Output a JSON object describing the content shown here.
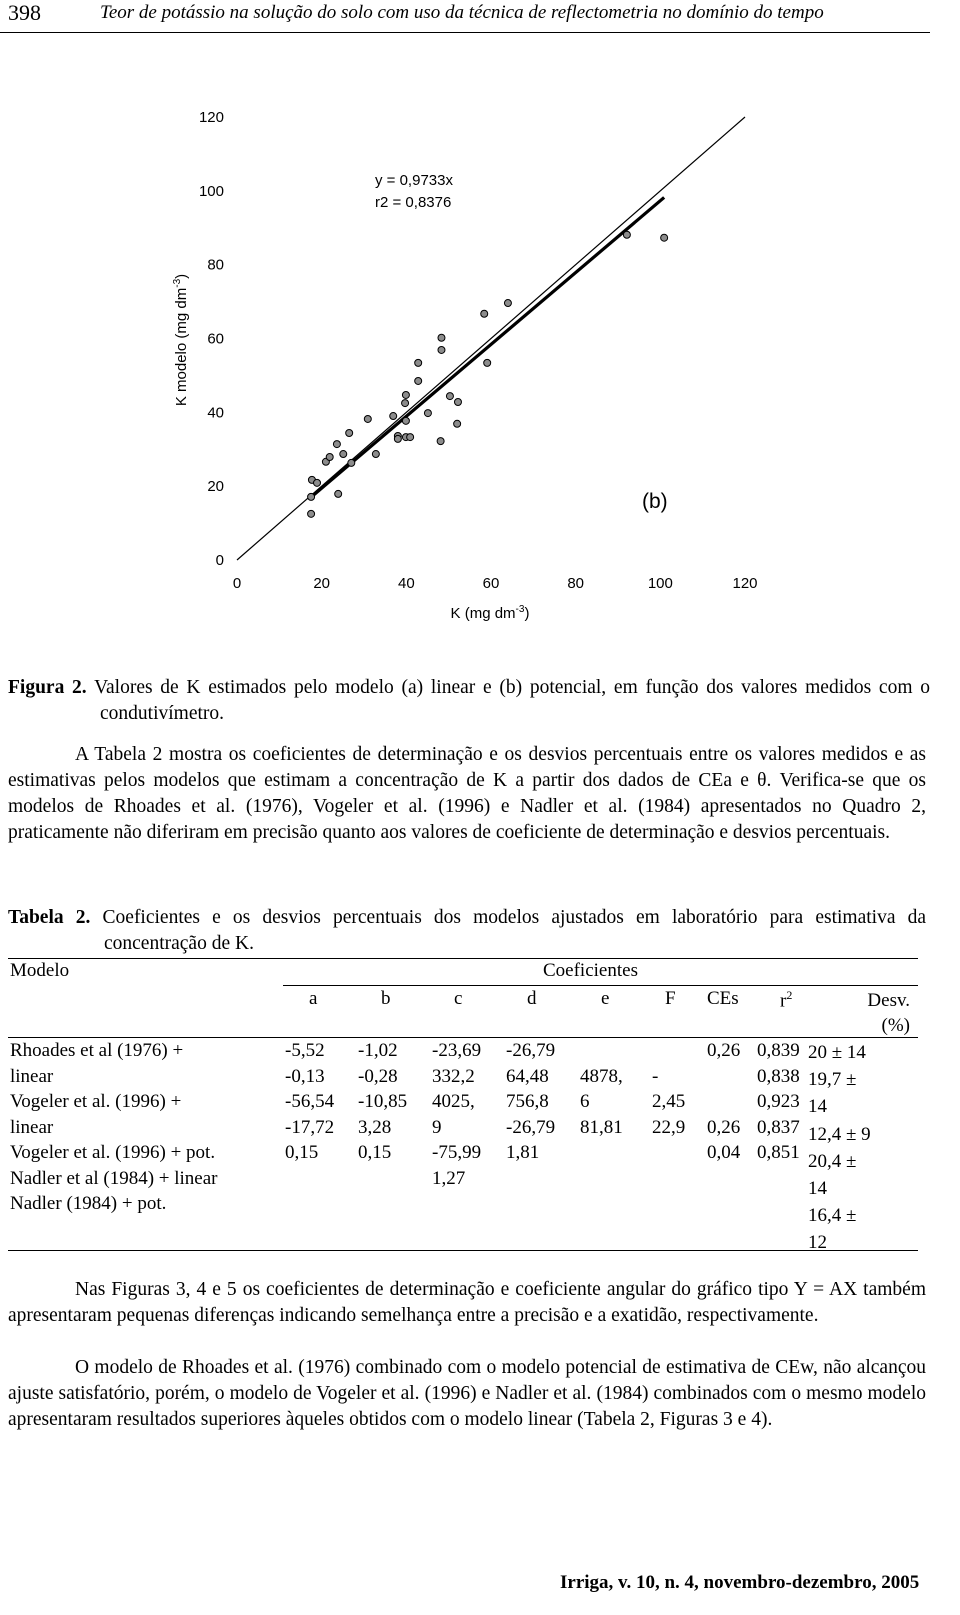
{
  "header": {
    "page": "398",
    "title": "Teor de potássio na solução do solo com uso da técnica de reflectometria no domínio do tempo"
  },
  "chart_data": {
    "type": "scatter",
    "x": [
      17.5,
      17.5,
      17.7,
      18.9,
      21.0,
      21.9,
      23.9,
      23.6,
      25.1,
      26.5,
      27.0,
      30.9,
      32.8,
      36.9,
      38.0,
      38.0,
      39.9,
      40.9,
      39.9,
      39.7,
      39.9,
      42.8,
      42.8,
      45.1,
      48.1,
      48.3,
      48.3,
      50.3,
      52.0,
      52.2,
      59.1,
      58.4,
      64.0,
      92.1,
      100.9
    ],
    "values": [
      12.5,
      17.1,
      21.7,
      20.9,
      26.6,
      27.9,
      17.9,
      31.4,
      28.7,
      34.4,
      26.3,
      38.2,
      28.7,
      39.0,
      33.6,
      32.8,
      33.3,
      33.3,
      37.7,
      42.5,
      44.7,
      48.5,
      53.4,
      39.8,
      32.2,
      56.9,
      60.2,
      44.4,
      36.9,
      42.8,
      53.4,
      66.7,
      69.6,
      88.1,
      87.3
    ],
    "color": "#8c8c8c",
    "xlim": [
      0,
      120
    ],
    "ylim": [
      0,
      120
    ],
    "xticks": [
      0,
      20,
      40,
      60,
      80,
      100,
      120
    ],
    "yticks": [
      0,
      20,
      40,
      60,
      80,
      100,
      120
    ],
    "xlabel": {
      "text": "K (mg dm",
      "sup": "-3",
      "end": ")"
    },
    "ylabel": {
      "text": "K modelo (mg dm",
      "sup": "-3",
      "end": ")"
    },
    "fit": {
      "label": "y = 0,9733x",
      "slope": 0.9733,
      "r2_label": "r2 = 0,8376"
    },
    "panel": "(b)"
  },
  "caption": {
    "label": "Figura 2.",
    "text": "Valores de K estimados pelo modelo (a) linear e (b) potencial, em função dos valores medidos com o condutivímetro."
  },
  "paragraph1": "A Tabela 2 mostra os coeficientes de determinação e os desvios percentuais entre os valores medidos e as estimativas pelos modelos que estimam a concentração de K a partir dos dados de CEa e θ. Verifica-se que os modelos de Rhoades et al. (1976), Vogeler et al. (1996) e Nadler et al. (1984) apresentados no Quadro 2, praticamente  não diferiram em precisão quanto aos valores de coeficiente de determinação e desvios percentuais.",
  "table": {
    "label": "Tabela 2.",
    "caption": "Coeficientes e os desvios percentuais dos modelos ajustados em laboratório para estimativa da concentração de K.",
    "model_header": "Modelo",
    "group_header": "Coeficientes",
    "columns": [
      "a",
      "b",
      "c",
      "d",
      "e",
      "F",
      "CEs",
      "r",
      "Desv. (%)"
    ],
    "r_sup": "2",
    "rows": [
      [
        "Rhoades et al (1976) +",
        "-5,52",
        "-1,02",
        "-23,69",
        "-26,79",
        null,
        null,
        "0,26",
        "0,839",
        "20 ± 14"
      ],
      [
        "linear",
        "-0,13",
        "-0,28",
        "332,2",
        "64,48",
        "4878,",
        "-",
        null,
        "0,838",
        "19,7 ±"
      ],
      [
        "Vogeler et al. (1996) +",
        "-56,54",
        "-10,85",
        "4025,",
        "756,8",
        "6",
        "2,45",
        null,
        "0,923",
        "14"
      ],
      [
        "linear",
        "-17,72",
        "3,28",
        "9",
        "-26,79",
        "81,81",
        "22,9",
        "0,26",
        "0,837",
        "12,4 ± 9"
      ],
      [
        "Vogeler et al. (1996) + pot.",
        "0,15",
        "0,15",
        "-75,99",
        "1,81",
        null,
        null,
        "0,04",
        "0,851",
        "20,4 ±"
      ],
      [
        "Nadler et al (1984) + linear",
        null,
        null,
        "1,27",
        null,
        null,
        null,
        null,
        null,
        "14"
      ],
      [
        "Nadler (1984) + pot.",
        null,
        null,
        null,
        null,
        null,
        null,
        null,
        null,
        "16,4 ±"
      ],
      [
        null,
        null,
        null,
        null,
        null,
        null,
        null,
        null,
        null,
        "12"
      ]
    ]
  },
  "paragraph2": "Nas Figuras 3, 4 e 5 os coeficientes de determinação e coeficiente angular do gráfico tipo Y = AX também apresentaram pequenas diferenças indicando semelhança entre a precisão e a exatidão, respectivamente.",
  "paragraph3": "O modelo de Rhoades et al. (1976) combinado com o modelo potencial de estimativa de CEw, não alcançou ajuste satisfatório, porém, o modelo de Vogeler et al. (1996) e Nadler et al. (1984) combinados com o mesmo modelo apresentaram resultados superiores àqueles obtidos com o modelo linear (Tabela 2, Figuras 3 e 4).",
  "footer": "Irriga, v. 10, n. 4, novembro-dezembro, 2005"
}
